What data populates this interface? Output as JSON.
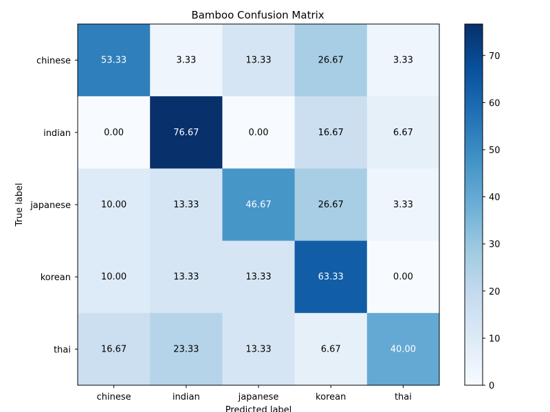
{
  "chart_data": {
    "type": "heatmap",
    "title": "Bamboo Confusion Matrix",
    "xlabel": "Predicted label",
    "ylabel": "True label",
    "x_categories": [
      "chinese",
      "indian",
      "japanese",
      "korean",
      "thai"
    ],
    "y_categories": [
      "chinese",
      "indian",
      "japanese",
      "korean",
      "thai"
    ],
    "values": [
      [
        53.33,
        3.33,
        13.33,
        26.67,
        3.33
      ],
      [
        0.0,
        76.67,
        0.0,
        16.67,
        6.67
      ],
      [
        10.0,
        13.33,
        46.67,
        26.67,
        3.33
      ],
      [
        10.0,
        13.33,
        13.33,
        63.33,
        0.0
      ],
      [
        16.67,
        23.33,
        13.33,
        6.67,
        40.0
      ]
    ],
    "value_format": "2 decimals",
    "colormap": "Blues",
    "colorbar": {
      "range": [
        0,
        76.67
      ],
      "ticks": [
        "0",
        "10",
        "20",
        "30",
        "40",
        "50",
        "60",
        "70"
      ]
    },
    "text_colors": {
      "light": "#ffffff",
      "dark": "#000000"
    },
    "grid": false
  }
}
